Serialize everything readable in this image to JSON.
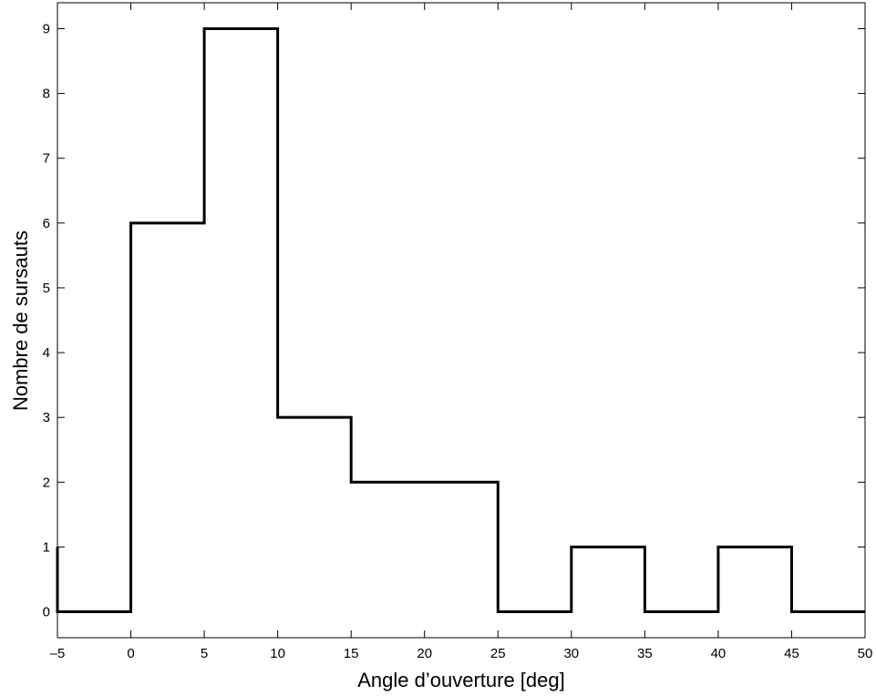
{
  "chart_data": {
    "type": "line",
    "style": "step histogram",
    "title": "",
    "xlabel": "Angle d’ouverture [deg]",
    "ylabel": "Nombre de sursauts",
    "xlim": [
      -5,
      50
    ],
    "ylim": [
      -0.4,
      9.4
    ],
    "xticks": [
      -5,
      0,
      5,
      10,
      15,
      20,
      25,
      30,
      35,
      40,
      45,
      50
    ],
    "xtick_labels": [
      "–5",
      "0",
      "5",
      "10",
      "15",
      "20",
      "25",
      "30",
      "35",
      "40",
      "45",
      "50"
    ],
    "yticks": [
      0,
      1,
      2,
      3,
      4,
      5,
      6,
      7,
      8,
      9
    ],
    "ytick_labels": [
      "0",
      "1",
      "2",
      "3",
      "4",
      "5",
      "6",
      "7",
      "8",
      "9"
    ],
    "grid": false,
    "legend": "none",
    "line_color": "#000000",
    "series": [
      {
        "bins": [
          {
            "x0": -5,
            "x1": 0,
            "count": 0
          },
          {
            "x0": 0,
            "x1": 5,
            "count": 6
          },
          {
            "x0": 5,
            "x1": 10,
            "count": 9
          },
          {
            "x0": 10,
            "x1": 15,
            "count": 3
          },
          {
            "x0": 15,
            "x1": 20,
            "count": 2
          },
          {
            "x0": 20,
            "x1": 25,
            "count": 2
          },
          {
            "x0": 25,
            "x1": 30,
            "count": 0
          },
          {
            "x0": 30,
            "x1": 35,
            "count": 1
          },
          {
            "x0": 35,
            "x1": 40,
            "count": 0
          },
          {
            "x0": 40,
            "x1": 45,
            "count": 1
          },
          {
            "x0": 45,
            "x1": 50,
            "count": 0
          }
        ],
        "left_edge_count": 1
      }
    ]
  }
}
